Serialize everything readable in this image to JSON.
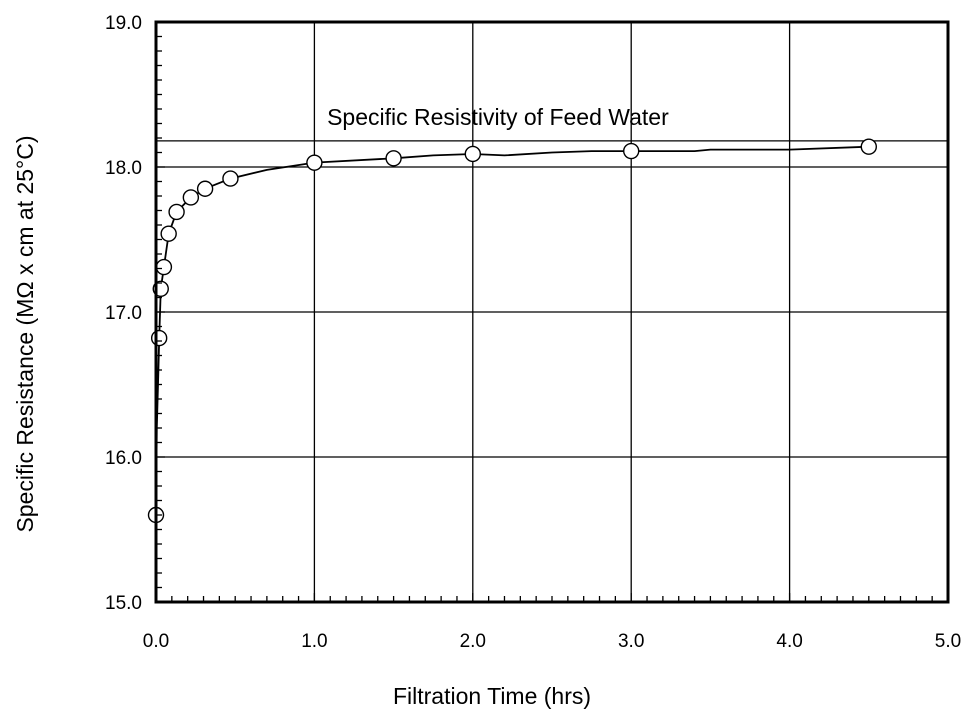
{
  "chart_data": {
    "type": "scatter",
    "xlabel": "Filtration Time (hrs)",
    "ylabel": "Specific Resistance (MΩ x cm at 25°C)",
    "xlim": [
      0,
      5
    ],
    "ylim": [
      15,
      19
    ],
    "x_ticks": [
      "0.0",
      "1.0",
      "2.0",
      "3.0",
      "4.0",
      "5.0"
    ],
    "y_ticks": [
      "15.0",
      "16.0",
      "17.0",
      "18.0",
      "19.0"
    ],
    "grid": true,
    "reference_lines": [
      {
        "label": "Specific Resistivity of Feed Water",
        "y": 18.18
      }
    ],
    "series": [
      {
        "markers": "open-circle",
        "x": [
          0.0,
          0.02,
          0.03,
          0.05,
          0.08,
          0.13,
          0.22,
          0.31,
          0.47,
          1.0,
          1.5,
          2.0,
          3.0,
          4.5
        ],
        "y": [
          15.6,
          16.82,
          17.16,
          17.31,
          17.54,
          17.69,
          17.79,
          17.85,
          17.92,
          18.03,
          18.06,
          18.09,
          18.11,
          18.14
        ]
      }
    ],
    "curve": {
      "x": [
        0.0,
        0.005,
        0.01,
        0.015,
        0.02,
        0.03,
        0.05,
        0.08,
        0.13,
        0.22,
        0.31,
        0.47,
        0.7,
        1.0,
        1.5,
        1.75,
        2.0,
        2.2,
        2.5,
        2.75,
        3.0,
        3.4,
        3.5,
        4.0,
        4.5
      ],
      "y": [
        15.6,
        16.2,
        16.4,
        16.6,
        16.82,
        17.16,
        17.31,
        17.54,
        17.69,
        17.79,
        17.85,
        17.92,
        17.98,
        18.03,
        18.06,
        18.08,
        18.09,
        18.08,
        18.1,
        18.11,
        18.11,
        18.11,
        18.12,
        18.12,
        18.14
      ]
    }
  }
}
